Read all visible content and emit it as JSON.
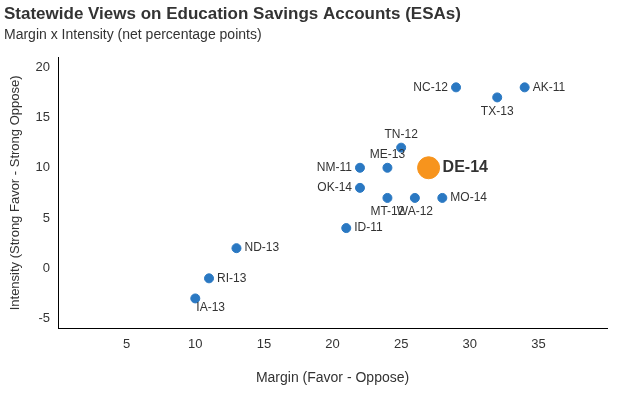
{
  "chart_data": {
    "type": "scatter",
    "title": "Statewide Views on Education Savings Accounts (ESAs)",
    "subtitle": "Margin x Intensity (net percentage points)",
    "x_label": "Margin (Favor - Oppose)",
    "y_label": "Intensity (Strong Favor - Strong Oppose)",
    "point_labels": [
      "NC-12",
      "AK-11",
      "TX-13",
      "TN-12",
      "ME-13",
      "NM-11",
      "DE-14",
      "OK-14",
      "MT-12",
      "WA-12",
      "MO-14",
      "ID-11",
      "ND-13",
      "RI-13",
      "IA-13"
    ],
    "x": [
      29,
      34,
      32,
      25,
      24,
      22,
      27,
      22,
      24,
      26,
      28,
      21,
      13,
      11,
      10
    ],
    "values": [
      18,
      18,
      17,
      12,
      10,
      10,
      10,
      8,
      7,
      7,
      7,
      4,
      2,
      -1,
      -3
    ],
    "colors": [
      "#2a78c2",
      "#2a78c2",
      "#2a78c2",
      "#2a78c2",
      "#2a78c2",
      "#2a78c2",
      "#f7941d",
      "#2a78c2",
      "#2a78c2",
      "#2a78c2",
      "#2a78c2",
      "#2a78c2",
      "#2a78c2",
      "#2a78c2",
      "#2a78c2"
    ],
    "xlim": [
      0,
      40
    ],
    "xticks": [
      5,
      10,
      15,
      20,
      25,
      30,
      35
    ],
    "ylim": [
      -6,
      21
    ],
    "yticks": [
      -5,
      0,
      5,
      10,
      15,
      20
    ],
    "grid": false,
    "marker": "circle"
  }
}
